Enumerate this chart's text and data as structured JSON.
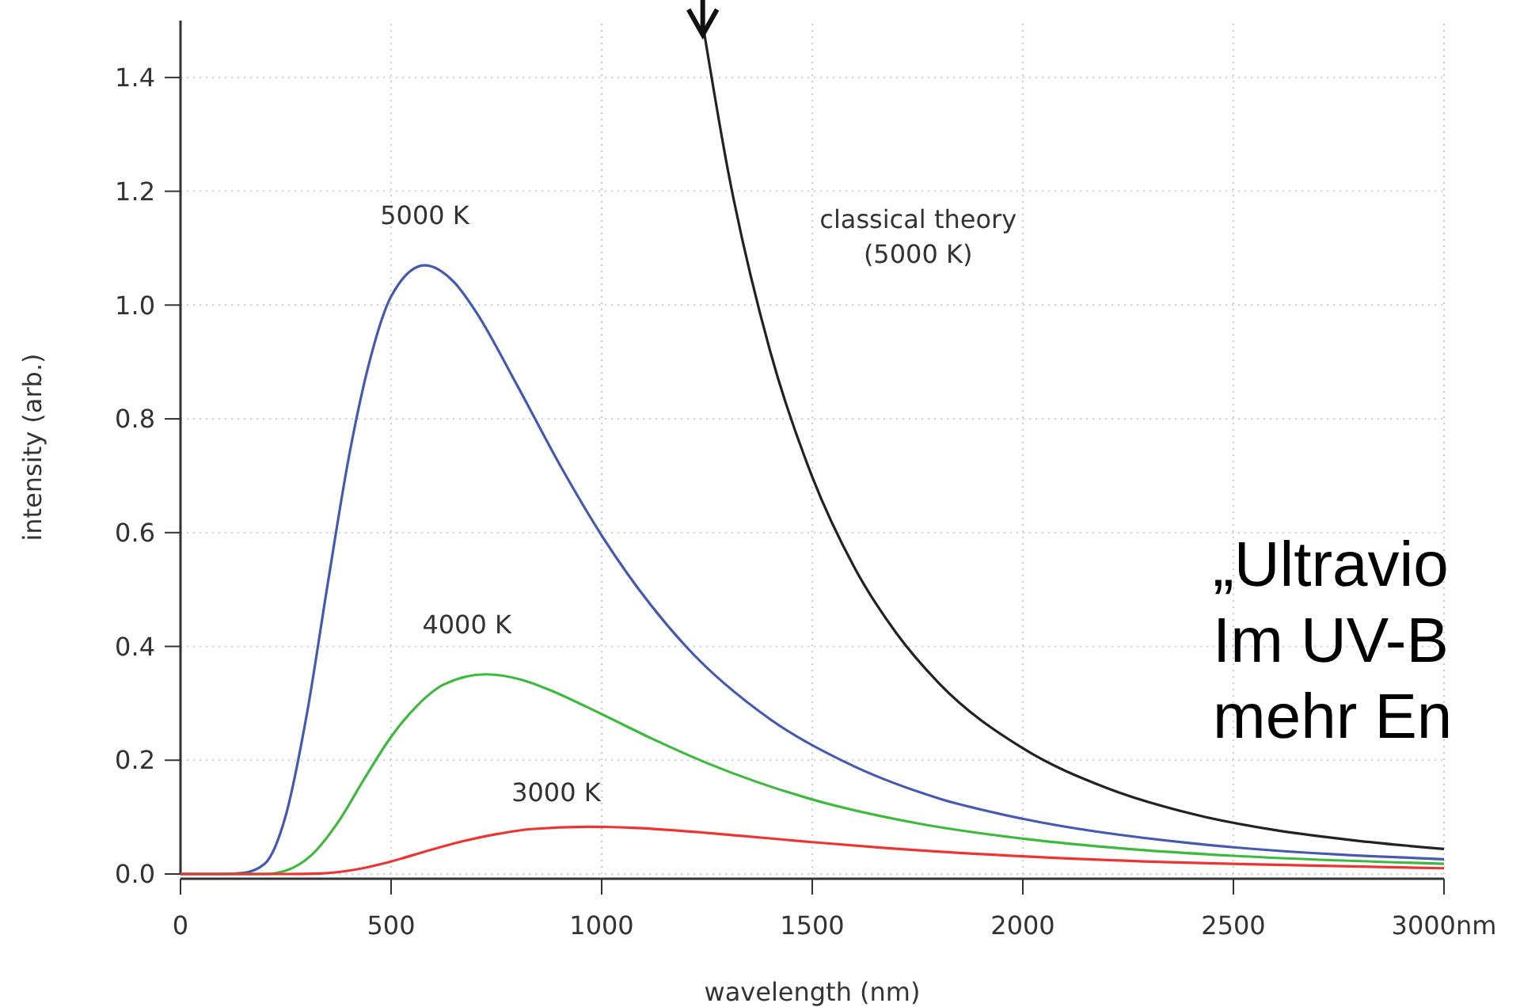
{
  "chart_data": {
    "type": "line",
    "xlabel": "wavelength (nm)",
    "ylabel": "intensity (arb.)",
    "xlim": [
      0,
      3000
    ],
    "ylim": [
      0,
      1.5
    ],
    "xticks": [
      0,
      500,
      1000,
      1500,
      2000,
      2500,
      {
        "value": 3000,
        "label": "3000nm"
      }
    ],
    "yticks": [
      {
        "value": 0,
        "label": "0.0"
      },
      0.2,
      0.4,
      0.6,
      0.8,
      {
        "value": 1,
        "label": "1.0"
      },
      1.2,
      1.4
    ],
    "grid": true,
    "line_style": "solid",
    "marker": "none",
    "series": [
      {
        "name": "5000 K",
        "color": "#4459b0",
        "x": [
          0,
          100,
          150,
          200,
          250,
          300,
          350,
          400,
          450,
          500,
          580,
          650,
          700,
          800,
          900,
          1000,
          1200,
          1400,
          1600,
          1800,
          2000,
          2400,
          2500,
          3000
        ],
        "values": [
          0,
          0,
          0.002,
          0.018,
          0.103,
          0.281,
          0.512,
          0.734,
          0.904,
          1.015,
          1.07,
          1.04,
          0.99,
          0.858,
          0.72,
          0.595,
          0.4,
          0.272,
          0.189,
          0.133,
          0.097,
          0.054,
          0.047,
          0.026
        ]
      },
      {
        "name": "4000 K",
        "color": "#3dba3d",
        "x": [
          0,
          200,
          250,
          312,
          375,
          437,
          500,
          562,
          625,
          725,
          812,
          875,
          1000,
          1125,
          1250,
          1500,
          1750,
          2000,
          2250,
          2500,
          3000
        ],
        "values": [
          0,
          0,
          0.006,
          0.034,
          0.092,
          0.168,
          0.241,
          0.296,
          0.333,
          0.351,
          0.341,
          0.324,
          0.281,
          0.236,
          0.195,
          0.131,
          0.089,
          0.062,
          0.044,
          0.032,
          0.018
        ]
      },
      {
        "name": "3000 K",
        "color": "#ee3333",
        "x": [
          0,
          250,
          333,
          417,
          500,
          583,
          667,
          750,
          833,
          967,
          1083,
          1167,
          1333,
          1500,
          1667,
          2000,
          2333,
          2667,
          3000
        ],
        "values": [
          0,
          0,
          0.001,
          0.008,
          0.022,
          0.04,
          0.057,
          0.07,
          0.079,
          0.083,
          0.081,
          0.077,
          0.067,
          0.056,
          0.046,
          0.031,
          0.021,
          0.015,
          0.01
        ]
      },
      {
        "name": "classical theory\n(5000 K)",
        "color": "#222222",
        "x": [
          1240,
          1300,
          1400,
          1500,
          1600,
          1700,
          1800,
          2000,
          2200,
          2400,
          2600,
          2800,
          3000
        ],
        "values": [
          1.494,
          1.236,
          0.919,
          0.698,
          0.539,
          0.423,
          0.336,
          0.221,
          0.151,
          0.106,
          0.077,
          0.058,
          0.044
        ]
      }
    ],
    "annotations": [
      "„Ultravio\nIm UV-B\nmehr En"
    ]
  }
}
